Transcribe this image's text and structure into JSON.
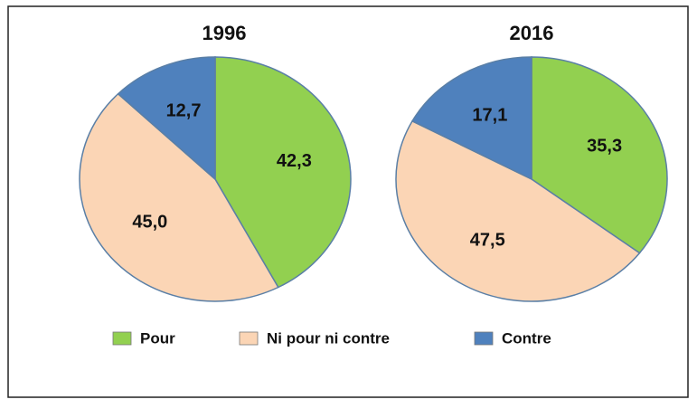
{
  "chart_data": [
    {
      "type": "pie",
      "title": "1996",
      "categories": [
        "Pour",
        "Ni pour ni contre",
        "Contre"
      ],
      "values": [
        42.3,
        45.0,
        12.7
      ],
      "value_labels": [
        "42,3",
        "45,0",
        "12,7"
      ],
      "colors": [
        "#92d050",
        "#fbd5b5",
        "#4f81bd"
      ]
    },
    {
      "type": "pie",
      "title": "2016",
      "categories": [
        "Pour",
        "Ni pour ni contre",
        "Contre"
      ],
      "values": [
        35.3,
        47.5,
        17.1
      ],
      "value_labels": [
        "35,3",
        "47,5",
        "17,1"
      ],
      "colors": [
        "#92d050",
        "#fbd5b5",
        "#4f81bd"
      ]
    }
  ]
}
